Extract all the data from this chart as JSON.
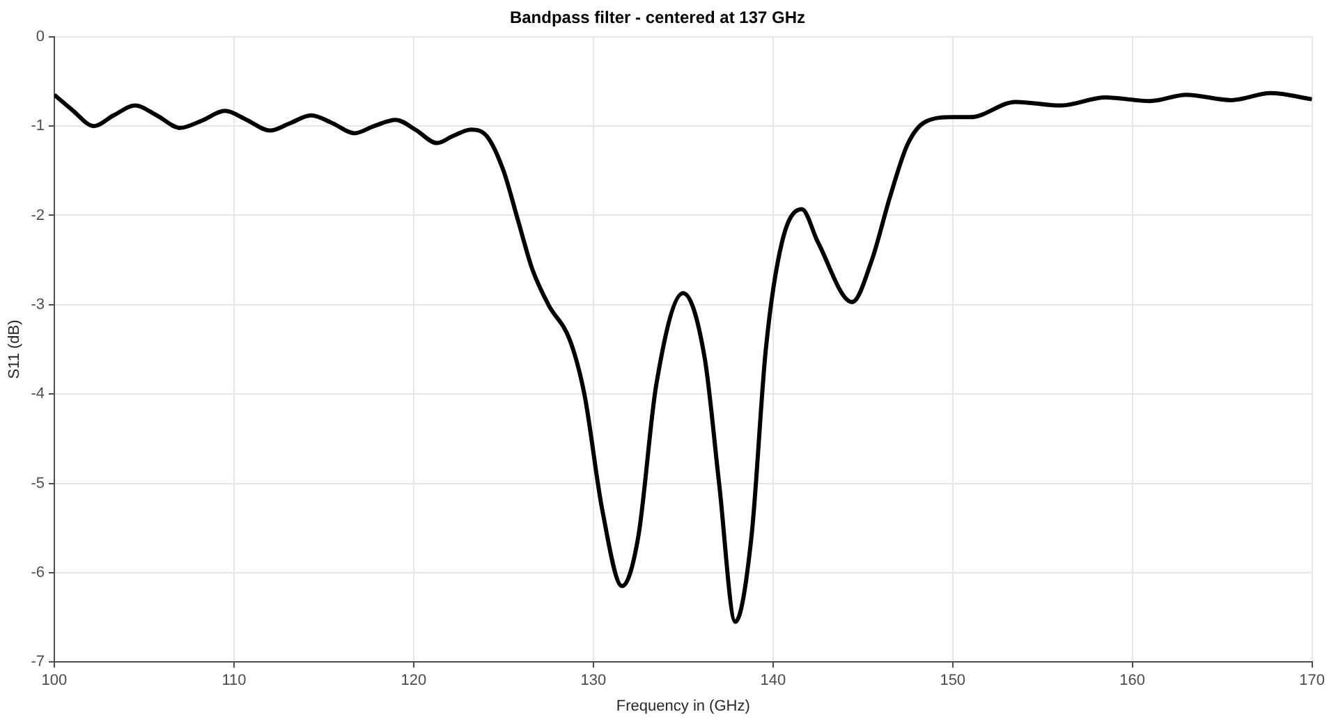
{
  "chart_data": {
    "type": "line",
    "title": "Bandpass filter - centered at 137 GHz",
    "xlabel": "Frequency in (GHz)",
    "ylabel": "S11 (dB)",
    "x": [
      100,
      101,
      102.2,
      103.3,
      104.5,
      105.7,
      107,
      108.2,
      109.5,
      110.7,
      112,
      113.1,
      114.3,
      115.5,
      116.7,
      117.8,
      119,
      120.1,
      121.3,
      122.2,
      123.2,
      124.1,
      125,
      125.8,
      126.6,
      127.5,
      128.7,
      129.5,
      130.5,
      131.6,
      132.5,
      133.5,
      135,
      136.2,
      137,
      137.9,
      138.8,
      139.6,
      140.5,
      141.6,
      142.5,
      144.4,
      145.5,
      146.5,
      147.5,
      148.5,
      150,
      151,
      153.5,
      156,
      158.5,
      161,
      163,
      165.5,
      167.7,
      170
    ],
    "series": [
      {
        "color": "#000000",
        "values": [
          -0.65,
          -0.82,
          -1.0,
          -0.88,
          -0.77,
          -0.88,
          -1.02,
          -0.94,
          -0.83,
          -0.93,
          -1.05,
          -0.97,
          -0.88,
          -0.97,
          -1.08,
          -1.0,
          -0.93,
          -1.04,
          -1.19,
          -1.11,
          -1.04,
          -1.12,
          -1.5,
          -2.05,
          -2.6,
          -3.0,
          -3.4,
          -4.0,
          -5.3,
          -6.15,
          -5.6,
          -3.9,
          -2.87,
          -3.6,
          -5.0,
          -6.55,
          -5.6,
          -3.5,
          -2.3,
          -1.93,
          -2.3,
          -2.97,
          -2.5,
          -1.8,
          -1.2,
          -0.95,
          -0.9,
          -0.9,
          -0.73,
          -0.77,
          -0.68,
          -0.72,
          -0.65,
          -0.71,
          -0.63,
          -0.7
        ]
      }
    ],
    "xlim": [
      100,
      170
    ],
    "xticks": [
      100,
      110,
      120,
      130,
      140,
      150,
      160,
      170
    ],
    "ylim": [
      -7,
      0
    ],
    "yticks": [
      -7,
      -6,
      -5,
      -4,
      -3,
      -2,
      -1,
      0
    ],
    "grid": true,
    "legend": false,
    "marker": "none",
    "line_style": "solid"
  }
}
